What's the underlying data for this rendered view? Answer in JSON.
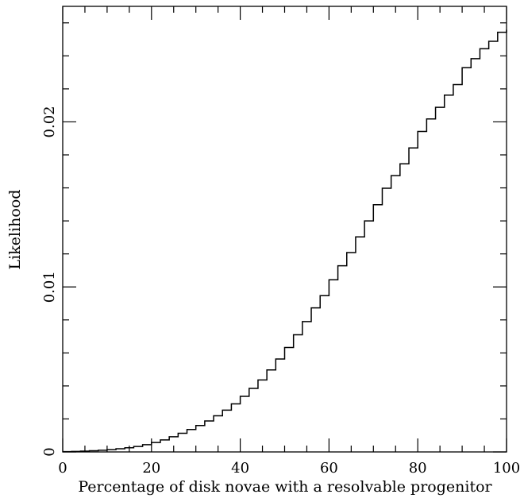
{
  "chart_data": {
    "type": "line",
    "step": true,
    "title": "",
    "xlabel": "Percentage of disk novae with a resolvable progenitor",
    "ylabel": "Likelihood",
    "xlim": [
      0,
      100
    ],
    "ylim": [
      0,
      0.027
    ],
    "xticks": [
      {
        "value": 0,
        "label": "0"
      },
      {
        "value": 20,
        "label": "20"
      },
      {
        "value": 40,
        "label": "40"
      },
      {
        "value": 60,
        "label": "60"
      },
      {
        "value": 80,
        "label": "80"
      },
      {
        "value": 100,
        "label": "100"
      }
    ],
    "yticks": [
      {
        "value": 0,
        "label": "0"
      },
      {
        "value": 0.01,
        "label": "0.01"
      },
      {
        "value": 0.02,
        "label": "0.02"
      }
    ],
    "grid": false,
    "color": "#000000",
    "series": [
      {
        "x": [
          0,
          2,
          4,
          6,
          8,
          10,
          12,
          14,
          16,
          18,
          20,
          22,
          24,
          26,
          28,
          30,
          32,
          34,
          36,
          38,
          40,
          42,
          44,
          46,
          48,
          50,
          52,
          54,
          56,
          58,
          60,
          62,
          64,
          66,
          68,
          70,
          72,
          74,
          76,
          78,
          80,
          82,
          84,
          86,
          88,
          90,
          92,
          94,
          96,
          98,
          100
        ],
        "values": [
          2e-05,
          3e-05,
          5e-05,
          7e-05,
          0.0001,
          0.00014,
          0.00019,
          0.00025,
          0.00033,
          0.00044,
          0.00057,
          0.00073,
          0.00092,
          0.00113,
          0.00136,
          0.0016,
          0.00188,
          0.00219,
          0.00253,
          0.00291,
          0.00337,
          0.00385,
          0.00436,
          0.00497,
          0.00563,
          0.00633,
          0.0071,
          0.0079,
          0.00873,
          0.00947,
          0.01043,
          0.01128,
          0.01208,
          0.01303,
          0.014,
          0.01498,
          0.01598,
          0.01674,
          0.01746,
          0.01842,
          0.01942,
          0.02018,
          0.02088,
          0.02162,
          0.02226,
          0.02328,
          0.02383,
          0.02443,
          0.02488,
          0.02543,
          0.02558
        ]
      }
    ]
  }
}
